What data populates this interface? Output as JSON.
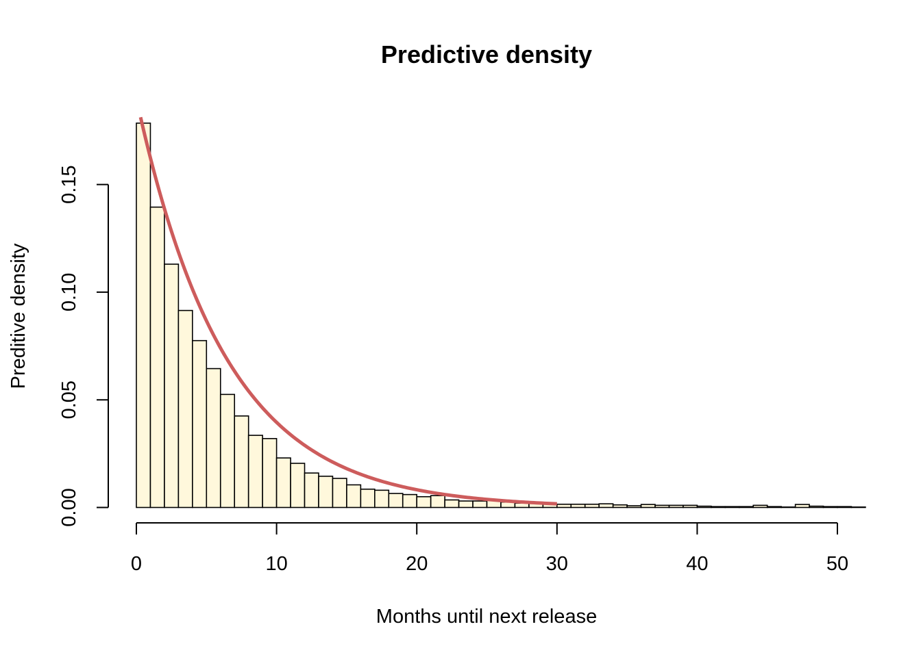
{
  "chart_data": {
    "type": "bar",
    "subtype": "histogram-with-density-curve",
    "title": "Predictive density",
    "xlabel": "Months until next release",
    "ylabel": "Preditive density",
    "x_ticks": [
      0,
      10,
      20,
      30,
      40,
      50
    ],
    "x_tick_labels": [
      "0",
      "10",
      "20",
      "30",
      "40",
      "50"
    ],
    "y_ticks": [
      0,
      0.05,
      0.1,
      0.15
    ],
    "y_tick_labels": [
      "0.00",
      "0.05",
      "0.10",
      "0.15"
    ],
    "xlim": [
      0,
      52
    ],
    "ylim": [
      0,
      0.185
    ],
    "grid": false,
    "bin_width": 1,
    "bin_start": 0,
    "values": [
      0.1785,
      0.1395,
      0.113,
      0.0915,
      0.0775,
      0.0645,
      0.0525,
      0.0425,
      0.0335,
      0.032,
      0.023,
      0.0205,
      0.016,
      0.0145,
      0.0135,
      0.0105,
      0.0085,
      0.008,
      0.0065,
      0.006,
      0.005,
      0.0055,
      0.0035,
      0.003,
      0.003,
      0.0035,
      0.0025,
      0.002,
      0.002,
      0.0015,
      0.0015,
      0.0015,
      0.0015,
      0.0017,
      0.0012,
      0.0008,
      0.0014,
      0.001,
      0.001,
      0.001,
      0.0006,
      0.0004,
      0.0004,
      0.0004,
      0.001,
      0.0004,
      0.0002,
      0.0014,
      0.0006,
      0.0004,
      0.0004,
      0.0002
    ],
    "bar_fill": "#FFF8DC",
    "bar_stroke": "#000000",
    "curve": {
      "color": "#CD5C5C",
      "x_range": [
        0.3,
        30
      ],
      "formula": "0.19 * exp(-0.157 * x)"
    }
  }
}
